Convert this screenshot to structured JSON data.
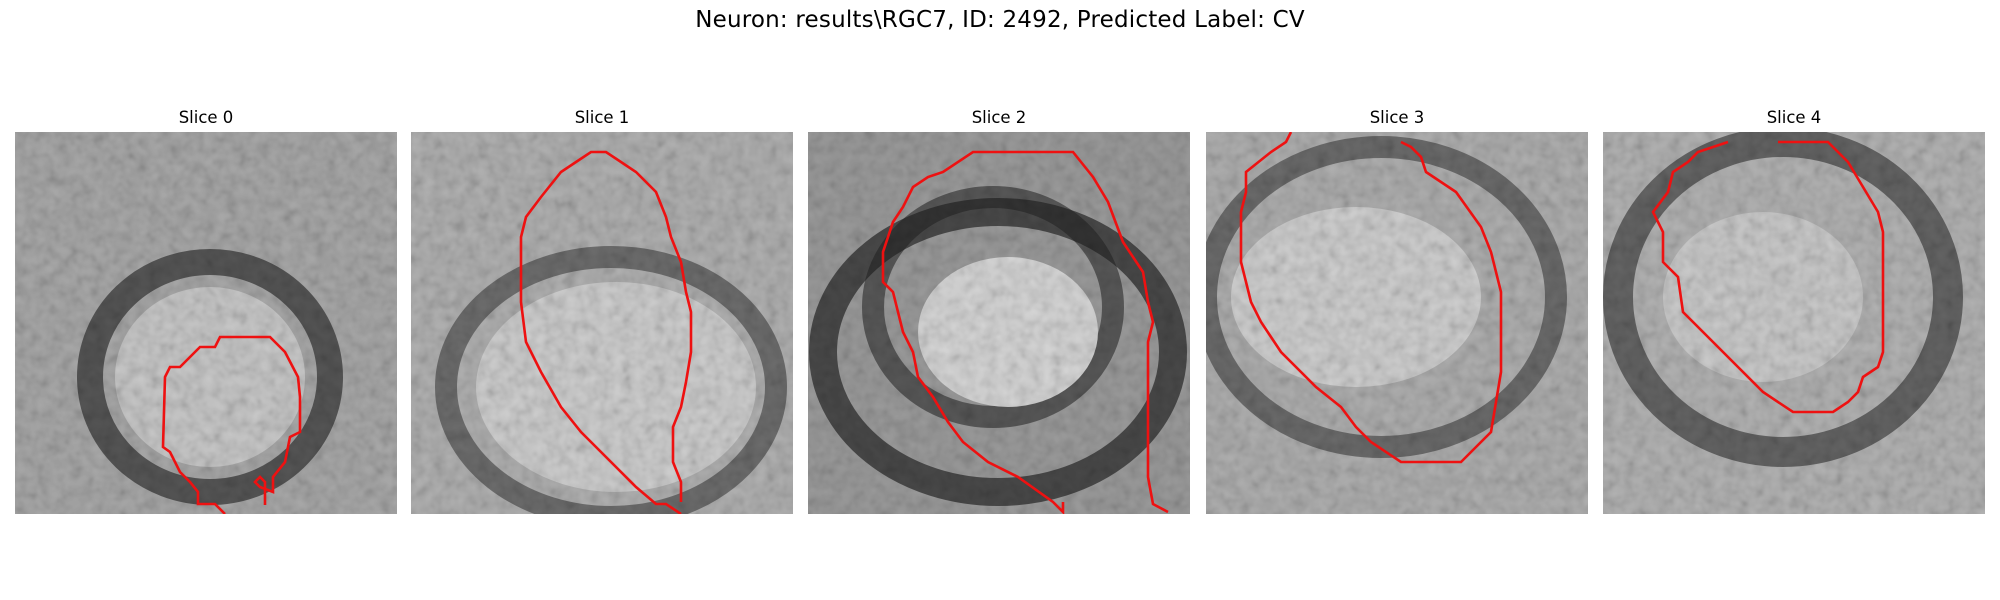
{
  "figure": {
    "title": "Neuron: results\\RGC7, ID: 2492, Predicted Label: CV"
  },
  "panels": [
    {
      "title": "Slice 0"
    },
    {
      "title": "Slice 1"
    },
    {
      "title": "Slice 2"
    },
    {
      "title": "Slice 3"
    },
    {
      "title": "Slice 4"
    }
  ],
  "colors": {
    "contour": "#ee1111",
    "background": "#ffffff"
  }
}
